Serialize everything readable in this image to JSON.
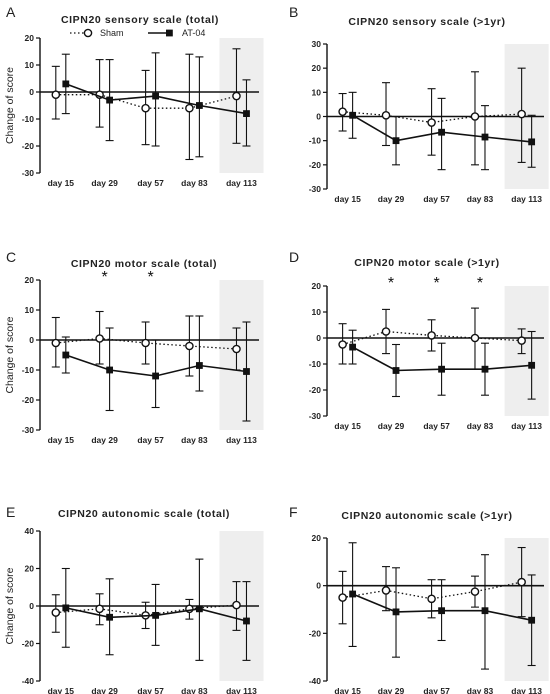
{
  "legend": {
    "sham": "Sham",
    "at04": "AT-04"
  },
  "colors": {
    "sham_line": "#222222",
    "at04_line": "#111111",
    "shade": "#eeeeee"
  },
  "chart_data": [
    {
      "letter": "A",
      "type": "line",
      "title": "CIPN20 sensory scale (total)",
      "ylabel": "Change of score",
      "ylim": [
        -30,
        20
      ],
      "yticks": [
        20,
        10,
        0,
        -10,
        -20,
        -30
      ],
      "categories": [
        "day 15",
        "day 29",
        "day 57",
        "day 83",
        "day 113"
      ],
      "highlight_category": "day 113",
      "series": [
        {
          "name": "Sham",
          "marker": "open-circle",
          "style": "dotted",
          "values": [
            -1,
            -1,
            -6,
            -6,
            -1.5
          ],
          "err_low": [
            -10,
            -13,
            -19.5,
            -25,
            -19
          ],
          "err_high": [
            9.5,
            12,
            8,
            14,
            16
          ]
        },
        {
          "name": "AT-04",
          "marker": "filled-square",
          "style": "solid",
          "values": [
            3,
            -3,
            -1.5,
            -5,
            -8
          ],
          "err_low": [
            -8,
            -18,
            -20,
            -24,
            -20
          ],
          "err_high": [
            14,
            12,
            14.5,
            13,
            4.5
          ]
        }
      ],
      "significance": []
    },
    {
      "letter": "B",
      "type": "line",
      "title": "CIPN20 sensory scale (>1yr)",
      "ylabel": "",
      "ylim": [
        -30,
        30
      ],
      "yticks": [
        30,
        20,
        10,
        0,
        -10,
        -20,
        -30
      ],
      "categories": [
        "day 15",
        "day 29",
        "day 57",
        "day 83",
        "day 113"
      ],
      "highlight_category": "day 113",
      "series": [
        {
          "name": "Sham",
          "marker": "open-circle",
          "style": "dotted",
          "values": [
            2,
            0.5,
            -2.5,
            0,
            1
          ],
          "err_low": [
            -6,
            -12,
            -16,
            -20,
            -19
          ],
          "err_high": [
            9.5,
            14,
            11.5,
            18.5,
            20
          ]
        },
        {
          "name": "AT-04",
          "marker": "filled-square",
          "style": "solid",
          "values": [
            0.5,
            -10,
            -6.5,
            -8.5,
            -10.5
          ],
          "err_low": [
            -9,
            -20,
            -22,
            -22,
            -21
          ],
          "err_high": [
            10,
            0,
            7.5,
            4.5,
            0.5
          ]
        }
      ],
      "significance": []
    },
    {
      "letter": "C",
      "type": "line",
      "title": "CIPN20 motor scale (total)",
      "ylabel": "Change of score",
      "ylim": [
        -30,
        20
      ],
      "yticks": [
        20,
        10,
        0,
        -10,
        -20,
        -30
      ],
      "categories": [
        "day 15",
        "day 29",
        "day 57",
        "day 83",
        "day 113"
      ],
      "highlight_category": "day 113",
      "series": [
        {
          "name": "Sham",
          "marker": "open-circle",
          "style": "dotted",
          "values": [
            -1,
            0.5,
            -1,
            -2,
            -3
          ],
          "err_low": [
            -9,
            -8,
            -8,
            -12,
            -10
          ],
          "err_high": [
            7.5,
            9.5,
            6,
            8,
            4
          ]
        },
        {
          "name": "AT-04",
          "marker": "filled-square",
          "style": "solid",
          "values": [
            -5,
            -10,
            -12,
            -8.5,
            -10.5
          ],
          "err_low": [
            -11,
            -23.5,
            -22.5,
            -17,
            -27
          ],
          "err_high": [
            1,
            4,
            0,
            8,
            6
          ]
        }
      ],
      "significance": [
        {
          "category": "day 29",
          "label": "*"
        },
        {
          "category": "day 57",
          "label": "*"
        }
      ]
    },
    {
      "letter": "D",
      "type": "line",
      "title": "CIPN20 motor scale (>1yr)",
      "ylabel": "",
      "ylim": [
        -30,
        20
      ],
      "yticks": [
        20,
        10,
        0,
        -10,
        -20,
        -30
      ],
      "categories": [
        "day 15",
        "day 29",
        "day 57",
        "day 83",
        "day 113"
      ],
      "highlight_category": "day 113",
      "series": [
        {
          "name": "Sham",
          "marker": "open-circle",
          "style": "dotted",
          "values": [
            -2.5,
            2.5,
            1,
            0,
            -1
          ],
          "err_low": [
            -10,
            -6,
            -5,
            -12,
            -6
          ],
          "err_high": [
            5.5,
            11,
            7,
            11.5,
            3.5
          ]
        },
        {
          "name": "AT-04",
          "marker": "filled-square",
          "style": "solid",
          "values": [
            -3.5,
            -12.5,
            -12,
            -12,
            -10.5
          ],
          "err_low": [
            -10,
            -22.5,
            -22,
            -22,
            -23.5
          ],
          "err_high": [
            3,
            -2.5,
            -2,
            -2,
            2.5
          ]
        }
      ],
      "significance": [
        {
          "category": "day 29",
          "label": "*"
        },
        {
          "category": "day 57",
          "label": "*"
        },
        {
          "category": "day 83",
          "label": "*"
        }
      ]
    },
    {
      "letter": "E",
      "type": "line",
      "title": "CIPN20 autonomic scale (total)",
      "ylabel": "Change of score",
      "ylim": [
        -40,
        40
      ],
      "yticks": [
        40,
        20,
        0,
        -20,
        -40
      ],
      "categories": [
        "day 15",
        "day 29",
        "day 57",
        "day 83",
        "day 113"
      ],
      "highlight_category": "day 113",
      "series": [
        {
          "name": "Sham",
          "marker": "open-circle",
          "style": "dotted",
          "values": [
            -3.5,
            -1.5,
            -5,
            -1.5,
            0.5
          ],
          "err_low": [
            -14,
            -10,
            -12,
            -7,
            -13
          ],
          "err_high": [
            6,
            6.5,
            2,
            3.5,
            13
          ]
        },
        {
          "name": "AT-04",
          "marker": "filled-square",
          "style": "solid",
          "values": [
            -1,
            -6,
            -5,
            -1.5,
            -8
          ],
          "err_low": [
            -22,
            -26,
            -21,
            -29,
            -29
          ],
          "err_high": [
            20,
            14.5,
            11.5,
            25,
            13
          ]
        }
      ],
      "significance": []
    },
    {
      "letter": "F",
      "type": "line",
      "title": "CIPN20 autonomic scale (>1yr)",
      "ylabel": "",
      "ylim": [
        -40,
        20
      ],
      "yticks": [
        20,
        0,
        -20,
        -40
      ],
      "categories": [
        "day 15",
        "day 29",
        "day 57",
        "day 83",
        "day 113"
      ],
      "highlight_category": "day 113",
      "series": [
        {
          "name": "Sham",
          "marker": "open-circle",
          "style": "dotted",
          "values": [
            -5,
            -2,
            -5.5,
            -2.5,
            1.5
          ],
          "err_low": [
            -16,
            -10.5,
            -13.5,
            -9,
            -13
          ],
          "err_high": [
            6,
            8,
            2.5,
            4,
            16
          ]
        },
        {
          "name": "AT-04",
          "marker": "filled-square",
          "style": "solid",
          "values": [
            -3.5,
            -11,
            -10.5,
            -10.5,
            -14.5
          ],
          "err_low": [
            -25.5,
            -30,
            -23,
            -35,
            -33.5
          ],
          "err_high": [
            18,
            7.5,
            2.5,
            13,
            4.5
          ]
        }
      ],
      "significance": []
    }
  ]
}
